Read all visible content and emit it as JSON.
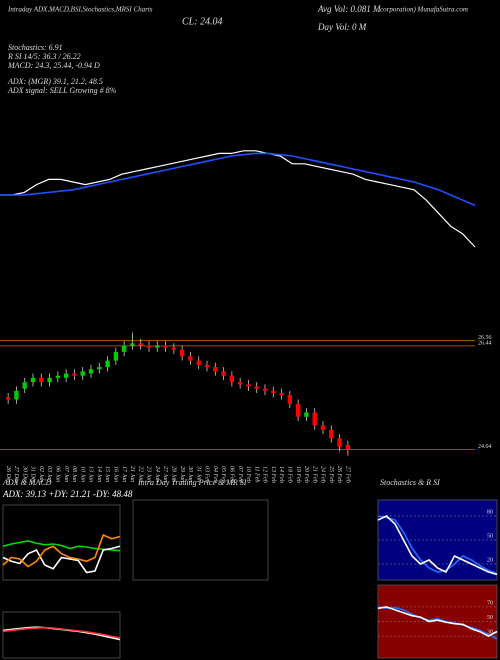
{
  "chart_data": [
    {
      "type": "candlestick",
      "annotations": [
        "Intraday ADX,MACD,BSI,Stochastics,MRSI Charts",
        "Avg Vol: 0.081 M",
        "CL: 24.04",
        "Day Vol: 0  M",
        "corporation) MunafaSutra.com",
        "Stochastics: 6.91",
        "R       SI 14/5: 36.3 / 26.22",
        "MACD: 24.3, 25.44, -0.94  D",
        "ADX:              (MGR) 39.1, 21.2, 48.5",
        "ADX  signal: SELL Growing # 8%"
      ],
      "categories": [
        "26 Dec",
        "27 Dec",
        "30 Dec",
        "31 Dec",
        "02 Jan",
        "03 Jan",
        "06 Jan",
        "07 Jan",
        "08 Jan",
        "10 Jan",
        "13 Jan",
        "14 Jan",
        "15 Jan",
        "16 Jan",
        "17 Jan",
        "21 Jan",
        "22 Jan",
        "23 Jan",
        "24 Jan",
        "27 Jan",
        "28 Jan",
        "29 Jan",
        "30 Jan",
        "31 Jan",
        "03 Feb",
        "04 Feb",
        "05 Feb",
        "06 Feb",
        "07 Feb",
        "10 Feb",
        "11 Feb",
        "12 Feb",
        "13 Feb",
        "14 Feb",
        "18 Feb",
        "19 Feb",
        "20 Feb",
        "21 Feb",
        "24 Feb",
        "25 Feb",
        "26 Feb",
        "27 Feb"
      ],
      "open": [
        25.25,
        25.2,
        25.45,
        25.6,
        25.7,
        25.6,
        25.7,
        25.7,
        25.8,
        25.75,
        25.8,
        25.9,
        25.95,
        26.1,
        26.3,
        26.45,
        26.5,
        26.45,
        26.4,
        26.45,
        26.4,
        26.35,
        26.2,
        26.1,
        26.0,
        25.95,
        25.85,
        25.75,
        25.6,
        25.55,
        25.5,
        25.45,
        25.4,
        25.35,
        25.3,
        25.1,
        24.8,
        24.9,
        24.6,
        24.5,
        24.3,
        24.15
      ],
      "high": [
        25.35,
        25.5,
        25.7,
        25.8,
        25.8,
        25.8,
        25.85,
        25.9,
        25.9,
        25.95,
        26.0,
        26.05,
        26.2,
        26.4,
        26.55,
        26.75,
        26.6,
        26.55,
        26.55,
        26.55,
        26.5,
        26.45,
        26.3,
        26.2,
        26.1,
        26.05,
        25.95,
        25.85,
        25.7,
        25.65,
        25.6,
        25.55,
        25.5,
        25.45,
        25.4,
        25.2,
        25.0,
        25.0,
        24.7,
        24.6,
        24.4,
        24.25
      ],
      "low": [
        25.1,
        25.1,
        25.35,
        25.5,
        25.5,
        25.5,
        25.6,
        25.6,
        25.65,
        25.65,
        25.7,
        25.8,
        25.85,
        26.0,
        26.2,
        26.35,
        26.35,
        26.3,
        26.3,
        26.3,
        26.25,
        26.1,
        26.0,
        25.9,
        25.85,
        25.75,
        25.65,
        25.5,
        25.45,
        25.4,
        25.35,
        25.3,
        25.25,
        25.2,
        25.0,
        24.7,
        24.7,
        24.5,
        24.4,
        24.2,
        24.0,
        23.9
      ],
      "close": [
        25.2,
        25.4,
        25.6,
        25.7,
        25.6,
        25.7,
        25.75,
        25.8,
        25.75,
        25.85,
        25.9,
        25.95,
        26.1,
        26.3,
        26.45,
        26.5,
        26.45,
        26.4,
        26.45,
        26.4,
        26.35,
        26.2,
        26.1,
        26.0,
        25.95,
        25.85,
        25.75,
        25.6,
        25.55,
        25.5,
        25.45,
        25.4,
        25.35,
        25.3,
        25.1,
        24.8,
        24.9,
        24.6,
        24.5,
        24.3,
        24.1,
        24.04
      ],
      "colors": {
        "up": "#00cc00",
        "down": "#ff0000",
        "level": "#cc6600"
      },
      "ylim": [
        23.8,
        26.9
      ],
      "yticks": [
        24.04,
        26.44,
        26.56
      ]
    },
    {
      "type": "line",
      "ylim": [
        23.5,
        28.5
      ],
      "series": [
        {
          "color": "#ffffff",
          "values": [
            26.0,
            26.0,
            26.1,
            26.4,
            26.6,
            26.6,
            26.5,
            26.4,
            26.5,
            26.6,
            26.8,
            26.9,
            27.0,
            27.1,
            27.2,
            27.3,
            27.4,
            27.5,
            27.6,
            27.6,
            27.7,
            27.7,
            27.6,
            27.5,
            27.2,
            27.2,
            27.1,
            27.0,
            26.9,
            26.8,
            26.6,
            26.5,
            26.4,
            26.3,
            26.2,
            25.8,
            25.3,
            24.8,
            24.5,
            24.0
          ]
        },
        {
          "color": "#1f4fff",
          "values": [
            26.0,
            26.0,
            26.0,
            26.05,
            26.1,
            26.15,
            26.2,
            26.3,
            26.4,
            26.5,
            26.6,
            26.7,
            26.8,
            26.9,
            27.0,
            27.1,
            27.2,
            27.3,
            27.4,
            27.5,
            27.55,
            27.6,
            27.6,
            27.55,
            27.5,
            27.4,
            27.3,
            27.2,
            27.1,
            27.0,
            26.9,
            26.8,
            26.7,
            26.6,
            26.5,
            26.35,
            26.2,
            26.0,
            25.8,
            25.6
          ]
        }
      ]
    },
    {
      "type": "line",
      "title": "ADX  & MACD",
      "subtitle": "ADX: 39.13 +DY: 21.21 -DY: 48.48",
      "ylim": [
        0,
        100
      ],
      "background": "#000000",
      "series": [
        {
          "color": "#00dd00",
          "values": [
            45,
            48,
            50,
            52,
            49,
            47,
            48,
            46,
            42,
            45,
            44,
            42,
            41,
            40,
            39
          ]
        },
        {
          "color": "#ffffff",
          "values": [
            30,
            25,
            22,
            35,
            40,
            20,
            15,
            30,
            28,
            26,
            10,
            12,
            40,
            42,
            45
          ]
        },
        {
          "color": "#ff8800",
          "values": [
            20,
            30,
            28,
            18,
            25,
            40,
            45,
            35,
            30,
            28,
            25,
            30,
            60,
            55,
            58
          ]
        }
      ]
    },
    {
      "type": "line",
      "ylim": [
        0,
        100
      ],
      "background": "#000000",
      "series": [
        {
          "color": "#ffffff",
          "values": [
            60,
            62,
            64,
            66,
            67,
            66,
            64,
            62,
            60,
            58,
            55,
            52,
            48,
            44,
            40
          ]
        },
        {
          "color": "#ff3333",
          "values": [
            58,
            60,
            62,
            64,
            65,
            66,
            65,
            63,
            61,
            59,
            57,
            54,
            51,
            47,
            44
          ]
        }
      ]
    },
    {
      "type": "line",
      "title": "Intra Day Trading Price  & MR               SI",
      "ylim": [
        0,
        100
      ],
      "background": "#000000",
      "series": []
    },
    {
      "type": "line",
      "title": "Stochastics & R               SI",
      "ylim": [
        0,
        100
      ],
      "yticks": [
        20,
        50,
        80
      ],
      "background": "#000080",
      "series": [
        {
          "color": "#1f6fff",
          "values": [
            80,
            78,
            75,
            60,
            40,
            25,
            15,
            10,
            12,
            20,
            30,
            25,
            18,
            12,
            8
          ]
        },
        {
          "color": "#ffffff",
          "values": [
            75,
            80,
            70,
            50,
            30,
            20,
            25,
            15,
            10,
            30,
            25,
            20,
            15,
            10,
            6.91
          ]
        }
      ]
    },
    {
      "type": "line",
      "ylim": [
        0,
        100
      ],
      "yticks": [
        30,
        50,
        70
      ],
      "background": "#880000",
      "series": [
        {
          "color": "#1f6fff",
          "values": [
            70,
            68,
            69,
            66,
            60,
            55,
            52,
            54,
            50,
            48,
            45,
            42,
            38,
            32,
            26.22
          ]
        },
        {
          "color": "#ffffff",
          "values": [
            68,
            70,
            66,
            62,
            58,
            56,
            50,
            52,
            49,
            47,
            46,
            40,
            36,
            30,
            36.3
          ]
        }
      ]
    }
  ]
}
